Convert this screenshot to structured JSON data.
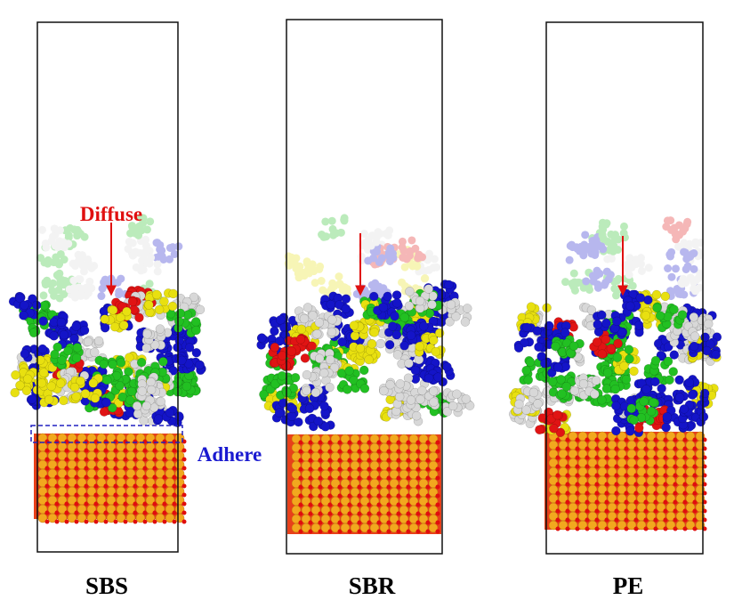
{
  "annotations": {
    "diffuse": "Diffuse",
    "adhere": "Adhere"
  },
  "panels": [
    {
      "label": "SBS"
    },
    {
      "label": "SBR"
    },
    {
      "label": "PE"
    }
  ]
}
